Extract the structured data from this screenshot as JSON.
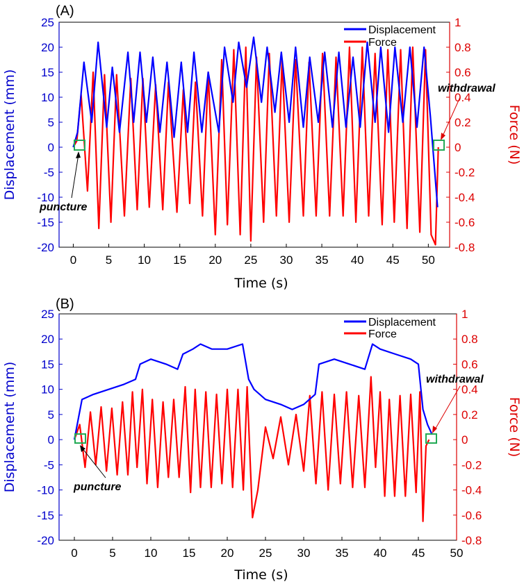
{
  "colors": {
    "displacement": "#0000ff",
    "force": "#ff0000",
    "marker": "#22aa55",
    "axis_left": "#0000cc",
    "axis_right": "#dd0000"
  },
  "chart_data": [
    {
      "panel_label": "(A)",
      "type": "line",
      "xlabel": "Time (s)",
      "ylabel": "Displacement (mm)",
      "y2label": "Force (N)",
      "xlim": [
        -2,
        53
      ],
      "ylim": [
        -20,
        25
      ],
      "y2lim": [
        -0.8,
        1.0
      ],
      "xticks": [
        0,
        5,
        10,
        15,
        20,
        25,
        30,
        35,
        40,
        45,
        50
      ],
      "yticks": [
        -20,
        -15,
        -10,
        -5,
        0,
        5,
        10,
        15,
        20,
        25
      ],
      "y2ticks": [
        -0.8,
        -0.6,
        -0.4,
        -0.2,
        0,
        0.2,
        0.4,
        0.6,
        0.8,
        1
      ],
      "legend": [
        "Displacement",
        "Force"
      ],
      "legend_position": "top-right",
      "annotations": [
        {
          "text": "puncture",
          "x": 0.0,
          "y": 0
        },
        {
          "text": "withdrawal",
          "x": 51.5,
          "y": 0
        }
      ],
      "series": [
        {
          "name": "Displacement",
          "axis": "left",
          "x": [
            0,
            0.6,
            1.5,
            2.6,
            3.5,
            4.7,
            5.5,
            6.5,
            7.7,
            8.5,
            9.4,
            10.3,
            11.2,
            12.2,
            13.2,
            14.2,
            15.2,
            16.1,
            17.0,
            18.1,
            19.0,
            20.5,
            21.3,
            22.5,
            23.3,
            24.4,
            25.4,
            26.5,
            27.3,
            28.4,
            29.3,
            30.4,
            31.3,
            32.4,
            33.3,
            34.5,
            35.4,
            36.5,
            37.4,
            38.4,
            39.4,
            40.4,
            41.4,
            42.5,
            43.3,
            44.4,
            45.3,
            46.4,
            47.4,
            48.4,
            49.4,
            50.3,
            51.3
          ],
          "values": [
            0,
            3,
            17,
            5,
            21,
            4,
            16,
            3,
            19,
            5,
            19,
            5,
            18,
            3,
            17,
            2,
            17,
            3,
            19,
            3,
            15,
            3,
            20,
            9,
            21,
            12,
            22,
            9,
            20,
            7,
            19,
            5,
            20,
            4,
            18,
            5,
            19,
            4,
            19,
            4,
            18,
            4,
            21,
            5,
            20,
            3,
            20,
            5,
            20,
            4,
            20,
            6,
            -12
          ]
        },
        {
          "name": "Force",
          "axis": "right",
          "x": [
            0,
            0.5,
            1.1,
            2.0,
            2.8,
            3.6,
            4.4,
            5.3,
            6.1,
            7.2,
            8.1,
            9.0,
            9.8,
            10.7,
            11.6,
            12.6,
            13.4,
            14.6,
            15.5,
            16.4,
            17.2,
            18.2,
            19.0,
            20.0,
            20.9,
            21.7,
            22.6,
            23.5,
            24.3,
            25.0,
            25.8,
            26.8,
            27.6,
            28.6,
            29.4,
            30.4,
            31.3,
            32.4,
            33.2,
            34.2,
            35.1,
            36.1,
            37.0,
            38.0,
            38.9,
            39.8,
            40.7,
            41.6,
            42.5,
            43.5,
            44.3,
            45.2,
            46.1,
            47.0,
            47.8,
            48.8,
            49.6,
            50.4,
            51.0,
            51.4
          ],
          "values": [
            0,
            0.05,
            0.42,
            -0.35,
            0.6,
            -0.65,
            0.58,
            -0.6,
            0.58,
            -0.55,
            0.55,
            -0.5,
            0.55,
            -0.48,
            0.5,
            -0.5,
            0.52,
            -0.52,
            0.46,
            -0.45,
            0.52,
            -0.55,
            0.6,
            -0.7,
            0.7,
            -0.62,
            0.78,
            -0.7,
            0.8,
            -0.75,
            0.72,
            -0.6,
            0.75,
            -0.55,
            0.7,
            -0.6,
            0.7,
            -0.55,
            0.68,
            -0.55,
            0.75,
            -0.55,
            0.72,
            -0.55,
            0.8,
            -0.6,
            0.8,
            -0.55,
            0.75,
            -0.62,
            0.78,
            -0.6,
            0.78,
            -0.65,
            0.8,
            -0.68,
            0.78,
            -0.7,
            -0.78,
            0
          ]
        }
      ]
    },
    {
      "panel_label": "(B)",
      "type": "line",
      "xlabel": "Time (s)",
      "ylabel": "Displacement (mm)",
      "y2label": "Force (N)",
      "xlim": [
        -2,
        50
      ],
      "ylim": [
        -20,
        25
      ],
      "y2lim": [
        -0.8,
        1.0
      ],
      "xticks": [
        0,
        5,
        10,
        15,
        20,
        25,
        30,
        35,
        40,
        45,
        50
      ],
      "yticks": [
        -20,
        -15,
        -10,
        -5,
        0,
        5,
        10,
        15,
        20,
        25
      ],
      "y2ticks": [
        -0.8,
        -0.6,
        -0.4,
        -0.2,
        0,
        0.2,
        0.4,
        0.6,
        0.8,
        1
      ],
      "legend": [
        "Displacement",
        "Force"
      ],
      "legend_position": "top-right",
      "annotations": [
        {
          "text": "puncture",
          "x": 0.0,
          "y": 0
        },
        {
          "text": "withdrawal",
          "x": 46.4,
          "y": 0
        }
      ],
      "series": [
        {
          "name": "Displacement",
          "axis": "left",
          "x": [
            0,
            0.5,
            1.0,
            2.5,
            4.5,
            6.5,
            8.0,
            8.6,
            10.0,
            12.0,
            13.5,
            14.2,
            15.5,
            16.5,
            18.0,
            20.0,
            22.0,
            22.8,
            23.5,
            25.0,
            27.0,
            28.5,
            30.0,
            31.5,
            32.0,
            34.0,
            36.0,
            38.0,
            39.0,
            40.0,
            42.0,
            44.0,
            45.0,
            45.6,
            46.2,
            46.8
          ],
          "values": [
            0,
            4,
            8,
            9,
            10,
            11,
            12,
            15,
            16,
            15,
            14,
            17,
            18,
            19,
            18,
            18,
            19,
            12,
            10,
            8,
            7,
            6,
            7,
            9,
            15,
            16,
            15,
            14,
            19,
            18,
            17,
            16,
            15,
            6,
            3,
            1
          ]
        },
        {
          "name": "Force",
          "axis": "right",
          "x": [
            0,
            0.7,
            1.4,
            2.1,
            2.8,
            3.5,
            4.2,
            4.9,
            5.6,
            6.3,
            7.0,
            7.6,
            8.2,
            8.9,
            9.5,
            10.2,
            10.9,
            11.6,
            12.3,
            13.0,
            13.7,
            14.5,
            15.2,
            15.8,
            16.5,
            17.2,
            17.9,
            18.6,
            19.3,
            20.0,
            20.7,
            21.4,
            22.1,
            22.6,
            23.3,
            24.0,
            25.0,
            26.0,
            27.0,
            28.0,
            29.0,
            30.0,
            30.8,
            31.6,
            32.4,
            33.2,
            34.0,
            34.8,
            35.6,
            36.4,
            37.2,
            38.0,
            38.8,
            39.4,
            40.0,
            40.6,
            41.2,
            41.9,
            42.6,
            43.3,
            44.0,
            44.7,
            45.2,
            45.6,
            46.0,
            46.4
          ],
          "values": [
            0,
            0.12,
            -0.22,
            0.22,
            -0.2,
            0.26,
            -0.25,
            0.25,
            -0.28,
            0.3,
            -0.28,
            0.38,
            -0.22,
            0.4,
            -0.35,
            0.32,
            -0.38,
            0.3,
            -0.3,
            0.32,
            -0.3,
            0.42,
            -0.42,
            0.4,
            -0.38,
            0.38,
            -0.38,
            0.36,
            -0.35,
            0.4,
            -0.38,
            0.4,
            -0.4,
            0.42,
            -0.62,
            -0.4,
            0.1,
            -0.15,
            0.18,
            -0.2,
            0.2,
            -0.25,
            0.35,
            -0.35,
            0.38,
            -0.4,
            0.36,
            -0.35,
            0.38,
            -0.38,
            0.35,
            -0.38,
            0.5,
            -0.22,
            0.38,
            -0.45,
            0.32,
            -0.45,
            0.35,
            -0.45,
            0.36,
            -0.42,
            0.38,
            -0.65,
            -0.05,
            0
          ]
        }
      ]
    }
  ]
}
